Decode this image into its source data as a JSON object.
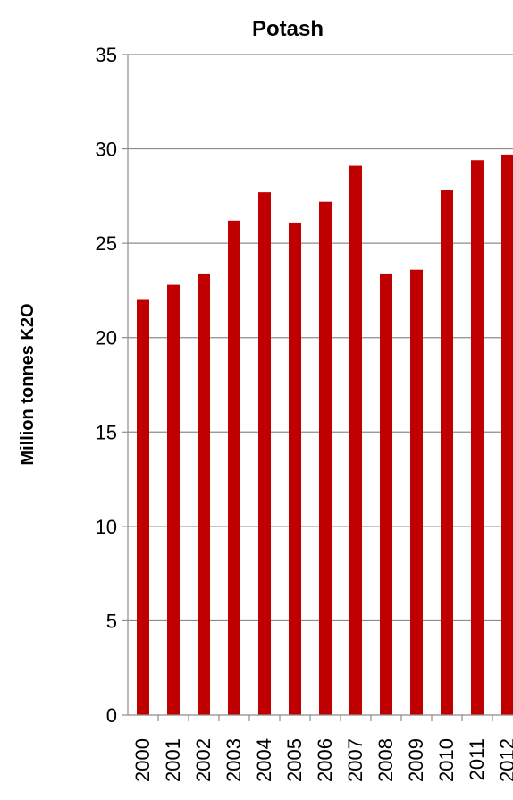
{
  "chart_data": {
    "type": "bar",
    "title": "Potash",
    "xlabel": "",
    "ylabel": "Million tonnes K2O",
    "ylim": [
      0,
      35
    ],
    "yticks": [
      0,
      5,
      10,
      15,
      20,
      25,
      30,
      35
    ],
    "grid": true,
    "legend": "none",
    "categories": [
      "2000",
      "2001",
      "2002",
      "2003",
      "2004",
      "2005",
      "2006",
      "2007",
      "2008",
      "2009",
      "2010",
      "2011",
      "2012"
    ],
    "series": [
      {
        "values": [
          22.0,
          22.8,
          23.4,
          26.2,
          27.7,
          26.1,
          27.2,
          29.1,
          23.4,
          23.6,
          27.8,
          29.4,
          29.7
        ],
        "color": "#c00000"
      }
    ]
  }
}
